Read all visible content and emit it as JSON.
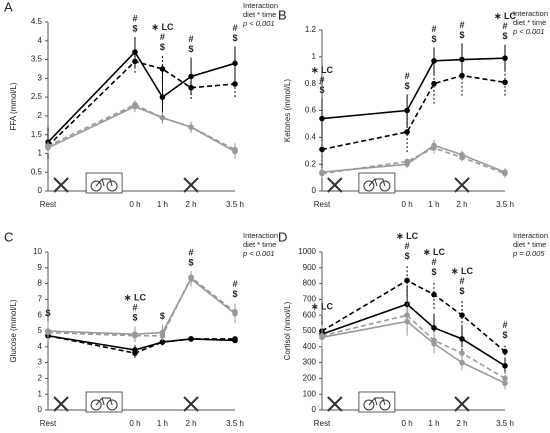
{
  "chart_data": [
    {
      "type": "line",
      "panel": "A",
      "ylabel": "FFA (mmol/L)",
      "note": [
        "Interaction",
        "diet * time",
        "p < 0.001"
      ],
      "categories": [
        "Rest",
        "0 h",
        "1 h",
        "2 h",
        "3.5 h"
      ],
      "ylim": [
        0,
        4.5
      ],
      "yticks": [
        0,
        0.5,
        1,
        1.5,
        2,
        2.5,
        3,
        3.5,
        4,
        4.5
      ],
      "series": [
        {
          "color": "#000000",
          "dash": false,
          "values": [
            1.3,
            3.7,
            2.5,
            3.05,
            3.4
          ],
          "errors": [
            0.4,
            0.4,
            0.7,
            0.5,
            0.45
          ]
        },
        {
          "color": "#000000",
          "dash": true,
          "values": [
            1.2,
            3.45,
            3.25,
            2.75,
            2.85
          ],
          "errors": [
            0.35,
            0.3,
            0.35,
            0.3,
            0.35
          ]
        },
        {
          "color": "#999999",
          "dash": false,
          "values": [
            1.15,
            2.25,
            1.95,
            1.7,
            1.05
          ],
          "errors": [
            0.15,
            0.15,
            0.15,
            0.15,
            0.2
          ]
        },
        {
          "color": "#999999",
          "dash": true,
          "values": [
            1.2,
            2.3,
            1.95,
            1.7,
            1.1
          ],
          "errors": [
            0.15,
            0.15,
            0.15,
            0.15,
            0.2
          ]
        }
      ],
      "annotations": [
        {
          "at": 1,
          "text": [
            "#",
            "$"
          ]
        },
        {
          "at": 2,
          "text": [
            "∗ LC",
            "#",
            "$"
          ]
        },
        {
          "at": 3,
          "text": [
            "#",
            "$"
          ]
        },
        {
          "at": 4,
          "text": [
            "#",
            "$"
          ]
        }
      ]
    },
    {
      "type": "line",
      "panel": "B",
      "ylabel": "Ketones (mmol/L)",
      "note": [
        "Interaction",
        "diet * time",
        "p < 0.001"
      ],
      "categories": [
        "Rest",
        "0 h",
        "1 h",
        "2 h",
        "3.5 h"
      ],
      "ylim": [
        0,
        1.2
      ],
      "yticks": [
        0,
        0.2,
        0.4,
        0.6,
        0.8,
        1,
        1.2
      ],
      "series": [
        {
          "color": "#000000",
          "dash": false,
          "values": [
            0.54,
            0.6,
            0.97,
            0.98,
            0.99
          ],
          "errors": [
            0.15,
            0.12,
            0.1,
            0.12,
            0.1
          ]
        },
        {
          "color": "#000000",
          "dash": true,
          "values": [
            0.31,
            0.44,
            0.8,
            0.86,
            0.81
          ],
          "errors": [
            0.15,
            0.15,
            0.15,
            0.15,
            0.1
          ]
        },
        {
          "color": "#999999",
          "dash": false,
          "values": [
            0.14,
            0.2,
            0.34,
            0.27,
            0.14
          ],
          "errors": [
            0.03,
            0.03,
            0.04,
            0.03,
            0.03
          ]
        },
        {
          "color": "#999999",
          "dash": true,
          "values": [
            0.13,
            0.22,
            0.32,
            0.25,
            0.13
          ],
          "errors": [
            0.03,
            0.03,
            0.04,
            0.03,
            0.03
          ]
        }
      ],
      "annotations": [
        {
          "at": 0,
          "text": [
            "∗ LC",
            "#",
            "$"
          ]
        },
        {
          "at": 1,
          "text": [
            "#",
            "$"
          ]
        },
        {
          "at": 2,
          "text": [
            "#",
            "$"
          ]
        },
        {
          "at": 3,
          "text": [
            "#",
            "$"
          ]
        },
        {
          "at": 4,
          "text": [
            "∗ LC",
            "#",
            "$"
          ]
        }
      ]
    },
    {
      "type": "line",
      "panel": "C",
      "ylabel": "Glucose (mmol/L)",
      "note": [
        "Interaction",
        "diet * time",
        "p < 0.001"
      ],
      "categories": [
        "Rest",
        "0 h",
        "1 h",
        "2 h",
        "3.5 h"
      ],
      "ylim": [
        0,
        10
      ],
      "yticks": [
        0,
        1,
        2,
        3,
        4,
        5,
        6,
        7,
        8,
        9,
        10
      ],
      "series": [
        {
          "color": "#000000",
          "dash": false,
          "values": [
            4.7,
            3.8,
            4.3,
            4.5,
            4.4
          ],
          "errors": [
            0.3,
            0.3,
            0.2,
            0.15,
            0.15
          ]
        },
        {
          "color": "#000000",
          "dash": true,
          "values": [
            4.7,
            3.6,
            4.3,
            4.5,
            4.5
          ],
          "errors": [
            0.3,
            0.3,
            0.2,
            0.15,
            0.15
          ]
        },
        {
          "color": "#999999",
          "dash": false,
          "values": [
            5,
            4.8,
            4.9,
            8.3,
            6.1
          ],
          "errors": [
            0.6,
            0.5,
            0.5,
            0.5,
            0.6
          ]
        },
        {
          "color": "#999999",
          "dash": true,
          "values": [
            4.9,
            4.7,
            4.7,
            8.4,
            6.2
          ],
          "errors": [
            0.4,
            0.4,
            0.3,
            0.4,
            0.6
          ]
        }
      ],
      "annotations": [
        {
          "at": 0,
          "text": [
            "$"
          ]
        },
        {
          "at": 1,
          "text": [
            "∗ LC",
            "#",
            "$"
          ]
        },
        {
          "at": 2,
          "text": [
            "$"
          ]
        },
        {
          "at": 3,
          "text": [
            "#",
            "$"
          ]
        },
        {
          "at": 4,
          "text": [
            "#",
            "$"
          ]
        }
      ]
    },
    {
      "type": "line",
      "panel": "D",
      "ylabel": "Cortisol (nmol/L)",
      "note": [
        "Interaction",
        "diet * time",
        "p = 0.005"
      ],
      "categories": [
        "Rest",
        "0 h",
        "1 h",
        "2 h",
        "3.5 h"
      ],
      "ylim": [
        0,
        1000
      ],
      "yticks": [
        0,
        100,
        200,
        300,
        400,
        500,
        600,
        700,
        800,
        900,
        1000
      ],
      "series": [
        {
          "color": "#000000",
          "dash": false,
          "values": [
            480,
            670,
            520,
            450,
            280
          ],
          "errors": [
            80,
            120,
            90,
            90,
            50
          ]
        },
        {
          "color": "#000000",
          "dash": true,
          "values": [
            500,
            820,
            730,
            600,
            370
          ],
          "errors": [
            100,
            100,
            90,
            100,
            50
          ]
        },
        {
          "color": "#999999",
          "dash": false,
          "values": [
            460,
            560,
            420,
            300,
            170
          ],
          "errors": [
            70,
            90,
            60,
            50,
            40
          ]
        },
        {
          "color": "#999999",
          "dash": true,
          "values": [
            470,
            600,
            440,
            360,
            200
          ],
          "errors": [
            70,
            90,
            60,
            50,
            40
          ]
        }
      ],
      "annotations": [
        {
          "at": 0,
          "text": [
            "∗ LC"
          ]
        },
        {
          "at": 1,
          "text": [
            "∗ LC",
            "#",
            "$"
          ]
        },
        {
          "at": 2,
          "text": [
            "∗ LC",
            "#",
            "$"
          ]
        },
        {
          "at": 3,
          "text": [
            "∗ LC",
            "#",
            "$"
          ]
        },
        {
          "at": 4,
          "text": [
            "#",
            "$"
          ]
        }
      ]
    }
  ]
}
